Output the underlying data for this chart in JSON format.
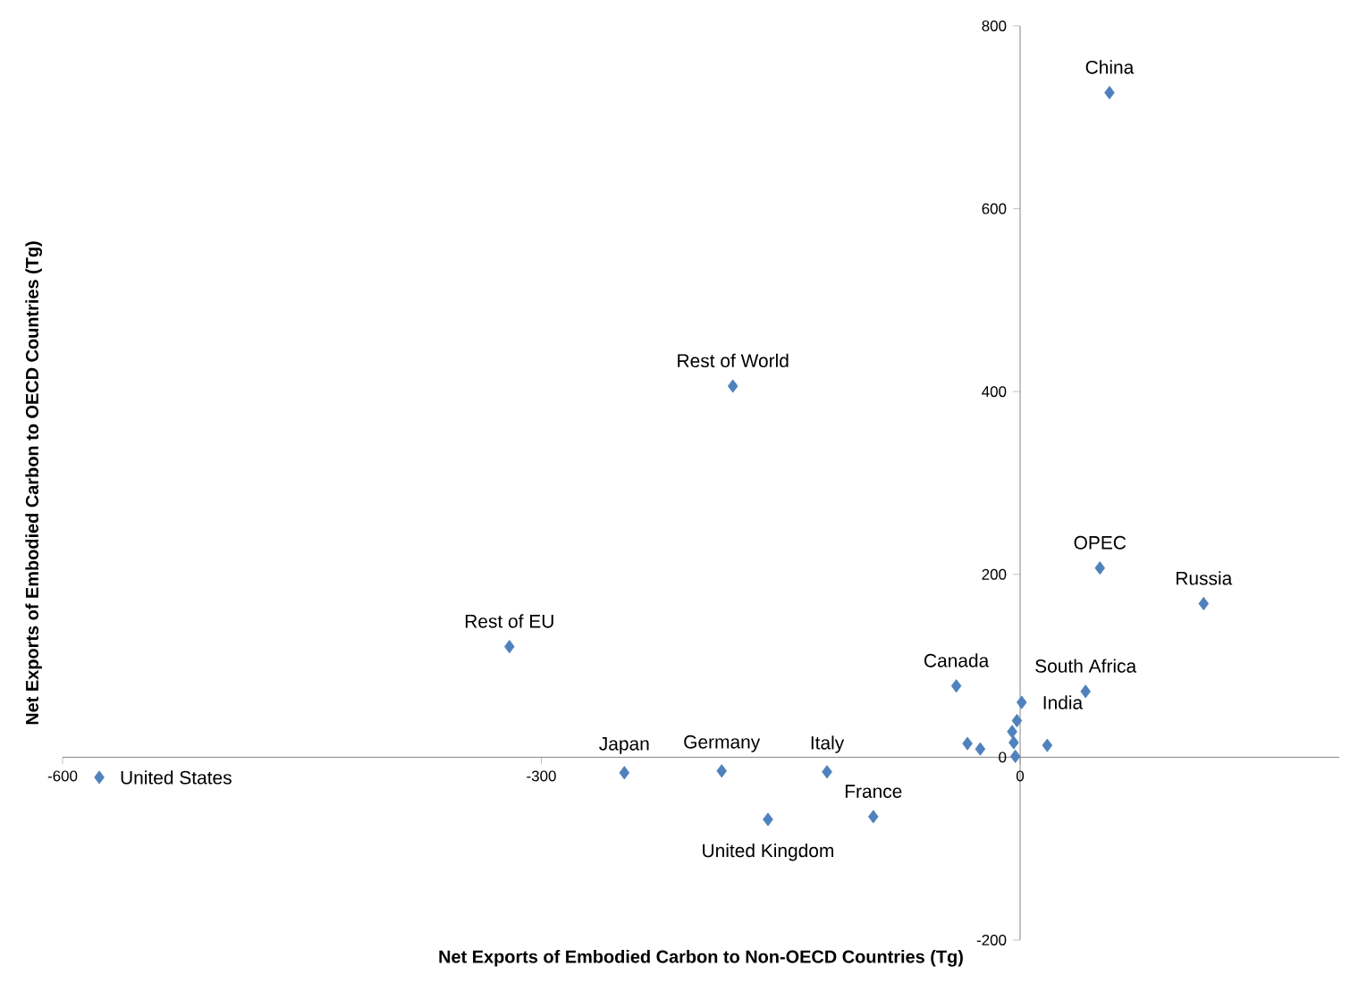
{
  "chart_data": {
    "type": "scatter",
    "xlabel": "Net Exports of Embodied Carbon to Non-OECD Countries (Tg)",
    "ylabel": "Net  Exports of Embodied Carbon to OECD Countries (Tg)",
    "x": [
      56,
      -180,
      50,
      115,
      -320,
      -40,
      41,
      1,
      -577,
      -248,
      -187,
      -121,
      -158,
      -92,
      -2,
      -5,
      -4,
      -3,
      -33,
      -25,
      17
    ],
    "series": [
      {
        "color": "#4f81bd",
        "values": [
          727,
          406,
          207,
          168,
          121,
          78,
          72,
          60,
          -22,
          -17,
          -15,
          -16,
          -68,
          -65,
          40,
          28,
          16,
          1,
          15,
          9,
          13
        ]
      }
    ],
    "marker": "diamond",
    "xlim": [
      -600,
      200
    ],
    "ylim": [
      -200,
      800
    ],
    "xticks": [
      -600,
      -300,
      0
    ],
    "yticks": [
      -200,
      0,
      200,
      400,
      600,
      800
    ],
    "grid": false,
    "annotations": [
      {
        "text": "China",
        "x": 56,
        "y": 727
      },
      {
        "text": "Rest of World",
        "x": -180,
        "y": 406
      },
      {
        "text": "OPEC",
        "x": 50,
        "y": 207
      },
      {
        "text": "Russia",
        "x": 115,
        "y": 168
      },
      {
        "text": "Rest of EU",
        "x": -320,
        "y": 121
      },
      {
        "text": "Canada",
        "x": -40,
        "y": 78
      },
      {
        "text": "South Africa",
        "x": 41,
        "y": 72
      },
      {
        "text": "India",
        "x": 1,
        "y": 60
      },
      {
        "text": "United States",
        "x": -577,
        "y": -22
      },
      {
        "text": "Japan",
        "x": -248,
        "y": -17
      },
      {
        "text": "Germany",
        "x": -187,
        "y": -15
      },
      {
        "text": "Italy",
        "x": -121,
        "y": -16
      },
      {
        "text": "United Kingdom",
        "x": -158,
        "y": -68
      },
      {
        "text": "France",
        "x": -92,
        "y": -65
      }
    ]
  }
}
